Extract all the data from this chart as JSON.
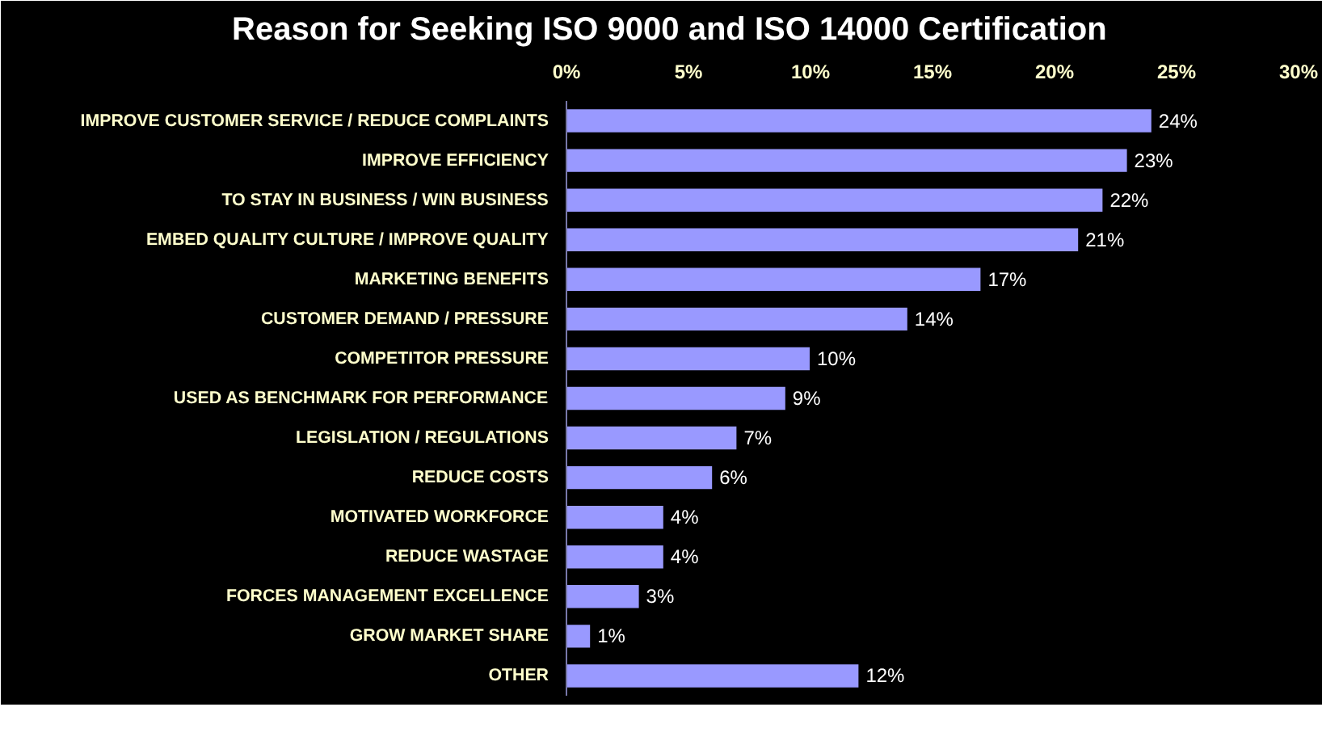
{
  "chart_data": {
    "type": "bar",
    "orientation": "horizontal",
    "title": "Reason for Seeking ISO 9000 and ISO 14000 Certification",
    "categories": [
      "IMPROVE CUSTOMER SERVICE / REDUCE COMPLAINTS",
      "IMPROVE EFFICIENCY",
      "TO STAY IN BUSINESS / WIN BUSINESS",
      "EMBED QUALITY CULTURE / IMPROVE QUALITY",
      "MARKETING BENEFITS",
      "CUSTOMER DEMAND / PRESSURE",
      "COMPETITOR PRESSURE",
      "USED AS BENCHMARK FOR PERFORMANCE",
      "LEGISLATION / REGULATIONS",
      "REDUCE COSTS",
      "MOTIVATED WORKFORCE",
      "REDUCE WASTAGE",
      "FORCES MANAGEMENT EXCELLENCE",
      "GROW MARKET SHARE",
      "OTHER"
    ],
    "values": [
      24,
      23,
      22,
      21,
      17,
      14,
      10,
      9,
      7,
      6,
      4,
      4,
      3,
      1,
      12
    ],
    "value_labels": [
      "24%",
      "23%",
      "22%",
      "21%",
      "17%",
      "14%",
      "10%",
      "9%",
      "7%",
      "6%",
      "4%",
      "4%",
      "3%",
      "1%",
      "12%"
    ],
    "color": "#9999ff",
    "xlim": [
      0,
      30
    ],
    "xticks": [
      {
        "value": 0,
        "label": "0%"
      },
      {
        "value": 5,
        "label": "5%"
      },
      {
        "value": 10,
        "label": "10%"
      },
      {
        "value": 15,
        "label": "15%"
      },
      {
        "value": 20,
        "label": "20%"
      },
      {
        "value": 25,
        "label": "25%"
      },
      {
        "value": 30,
        "label": "30%"
      }
    ]
  }
}
